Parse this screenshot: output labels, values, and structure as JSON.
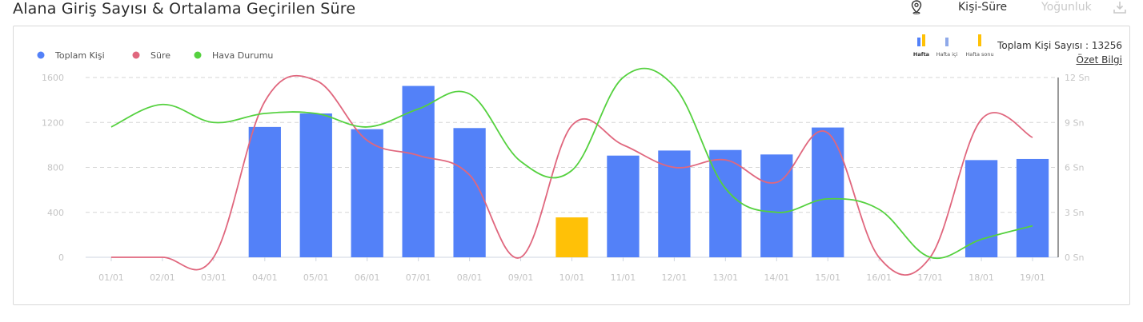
{
  "header": {
    "title": "Alana Giriş Sayısı & Ortalama Geçirilen Süre",
    "mode_active": "Kişi-Süre",
    "mode_inactive": "Yoğunluk",
    "pin_icon": "map-pin-icon",
    "download_icon": "download-icon"
  },
  "summary": {
    "total_label": "Toplam Kişi Sayısı : 13256",
    "link_label": "Özet Bilgi"
  },
  "period_toggles": [
    {
      "label": "Hafta",
      "active": true
    },
    {
      "label": "Hafta içi",
      "active": false
    },
    {
      "label": "Hafta sonu",
      "active": false
    }
  ],
  "colors": {
    "weekday_bar": "#5381f8",
    "weekend_bar": "#ffc107",
    "sure_line": "#e0677e",
    "hava_line": "#55d13f",
    "grid": "#d6d6d6",
    "tick_text": "#c4c4c4"
  },
  "chart_data": {
    "type": "bar",
    "categories": [
      "01/01",
      "02/01",
      "03/01",
      "04/01",
      "05/01",
      "06/01",
      "07/01",
      "08/01",
      "09/01",
      "10/01",
      "11/01",
      "12/01",
      "13/01",
      "14/01",
      "15/01",
      "16/01",
      "17/01",
      "18/01",
      "19/01"
    ],
    "series": [
      {
        "name": "Toplam Kişi",
        "type": "bar",
        "axis": "left",
        "values": [
          0,
          0,
          0,
          1160,
          1280,
          1140,
          1525,
          1150,
          0,
          355,
          905,
          950,
          955,
          915,
          1155,
          0,
          0,
          865,
          875
        ],
        "highlight": [
          false,
          false,
          false,
          false,
          false,
          false,
          false,
          false,
          false,
          true,
          false,
          false,
          false,
          false,
          false,
          false,
          false,
          false,
          false
        ]
      },
      {
        "name": "Süre",
        "type": "line",
        "axis": "right",
        "values": [
          0,
          0,
          0,
          10.4,
          11.8,
          7.8,
          6.8,
          5.5,
          0,
          8.8,
          7.5,
          6.0,
          6.5,
          5.0,
          8.3,
          0,
          0,
          9.2,
          8.0
        ]
      },
      {
        "name": "Hava Durumu",
        "type": "line",
        "axis": "right",
        "values": [
          8.7,
          10.2,
          9.0,
          9.6,
          9.6,
          8.7,
          9.9,
          10.9,
          6.4,
          5.8,
          12.0,
          11.4,
          4.6,
          3.0,
          3.9,
          3.2,
          0,
          1.2,
          2.1
        ]
      }
    ],
    "ylim_left": [
      0,
      1600
    ],
    "yticks_left": [
      "0",
      "400",
      "800",
      "1200",
      "1600"
    ],
    "ylim_right": [
      0,
      12
    ],
    "yticks_right": [
      "0 Sn",
      "3 Sn",
      "6 Sn",
      "9 Sn",
      "12 Sn"
    ],
    "grid": true,
    "legend": "top-left"
  }
}
